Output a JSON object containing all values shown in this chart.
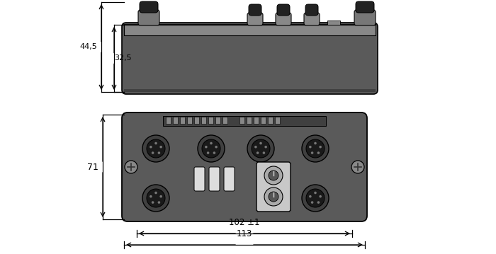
{
  "bg_color": "#ffffff",
  "device_color": "#5a5a5a",
  "device_light_color": "#888888",
  "device_dark_color": "#404040",
  "connector_color": "#333333",
  "connector_light": "#999999",
  "outline_color": "#000000",
  "dim_color": "#000000",
  "top_view": {
    "label_445": "44,5",
    "label_325": "32,5"
  },
  "front_view": {
    "label_71": "71",
    "label_102": "102 ±1",
    "label_113": "113"
  }
}
